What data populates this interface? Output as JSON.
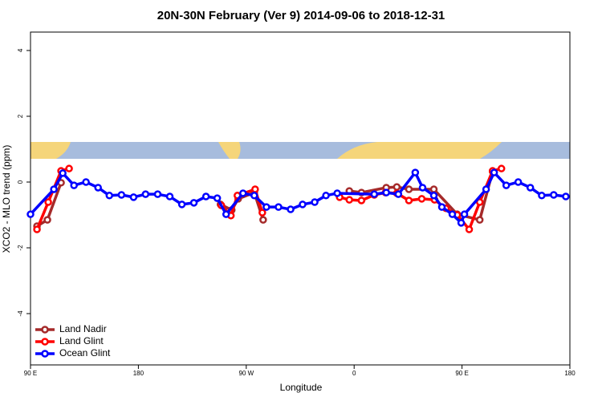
{
  "chart_data": {
    "type": "line",
    "title": "20N-30N February (Ver 9)   2014-09-06 to 2018-12-31",
    "x_label": "Longitude",
    "y_label": "XCO2 - MLO trend (ppm)",
    "xlim": [
      90,
      540
    ],
    "xticks": [
      {
        "value": 90,
        "label": "90 E"
      },
      {
        "value": 180,
        "label": "180"
      },
      {
        "value": 270,
        "label": "90 W"
      },
      {
        "value": 360,
        "label": "0"
      },
      {
        "value": 450,
        "label": "90 E"
      },
      {
        "value": 540,
        "label": "180"
      }
    ],
    "ylim": [
      -5.56,
      4.56
    ],
    "yticks": [
      -4,
      -2,
      0,
      2,
      4
    ],
    "legend": "lower left",
    "series": [
      {
        "name": "Land Nadir",
        "color": "#a52a2a",
        "x": [
          95.4,
          104.1,
          115.5,
          null,
          248.5,
          257.9,
          263.3,
          276.7,
          284.1,
          null,
          356,
          366.1,
          386.8,
          395.6,
          405.7,
          426.5,
          446,
          464.8,
          475.5
        ],
        "values": [
          -1.34,
          -1.15,
          -0.02,
          null,
          -0.68,
          -0.85,
          -0.51,
          -0.32,
          -1.15,
          null,
          -0.27,
          -0.32,
          -0.17,
          -0.15,
          -0.22,
          -0.22,
          -0.98,
          -1.15,
          0.32
        ]
      },
      {
        "name": "Land Glint",
        "color": "#ff0000",
        "x": [
          95.4,
          104.8,
          115.5,
          122.2,
          null,
          249.2,
          257.2,
          262.6,
          277.4,
          283.4,
          null,
          347.9,
          356,
          366.1,
          376.8,
          386.2,
          395.6,
          405.7,
          416.4,
          427.1,
          436.6,
          446,
          456,
          464.8,
          475.5,
          482.9
        ],
        "values": [
          -1.44,
          -0.61,
          0.34,
          0.41,
          null,
          -0.71,
          -1.02,
          -0.41,
          -0.22,
          -0.93,
          null,
          -0.46,
          -0.54,
          -0.56,
          -0.39,
          -0.32,
          -0.34,
          -0.56,
          -0.51,
          -0.54,
          -0.8,
          -1,
          -1.44,
          -0.61,
          0.34,
          0.41
        ]
      },
      {
        "name": "Ocean Glint",
        "color": "#0000ff",
        "x": [
          90,
          109.5,
          116.9,
          126.3,
          136.3,
          146.4,
          155.8,
          165.9,
          176,
          186,
          196.1,
          206.2,
          216.3,
          226.3,
          236.4,
          245.8,
          253.2,
          267.3,
          276.7,
          286.8,
          296.9,
          307,
          317,
          327.1,
          336.5,
          345.9,
          376.8,
          386.8,
          396.9,
          411,
          417.1,
          426.5,
          433.2,
          441.9,
          449.3,
          452,
          470.1,
          476.8,
          486.9,
          496.9,
          507,
          516.5,
          526.5,
          536.6
        ],
        "values": [
          -0.98,
          -0.22,
          0.27,
          -0.1,
          0,
          -0.17,
          -0.41,
          -0.39,
          -0.46,
          -0.37,
          -0.37,
          -0.44,
          -0.68,
          -0.63,
          -0.44,
          -0.49,
          -0.98,
          -0.34,
          -0.41,
          -0.76,
          -0.76,
          -0.83,
          -0.68,
          -0.61,
          -0.41,
          -0.34,
          -0.37,
          -0.32,
          -0.37,
          0.29,
          -0.17,
          -0.41,
          -0.76,
          -0.98,
          -1.24,
          -0.98,
          -0.22,
          0.29,
          -0.1,
          0,
          -0.17,
          -0.41,
          -0.39,
          -0.44
        ]
      }
    ]
  }
}
